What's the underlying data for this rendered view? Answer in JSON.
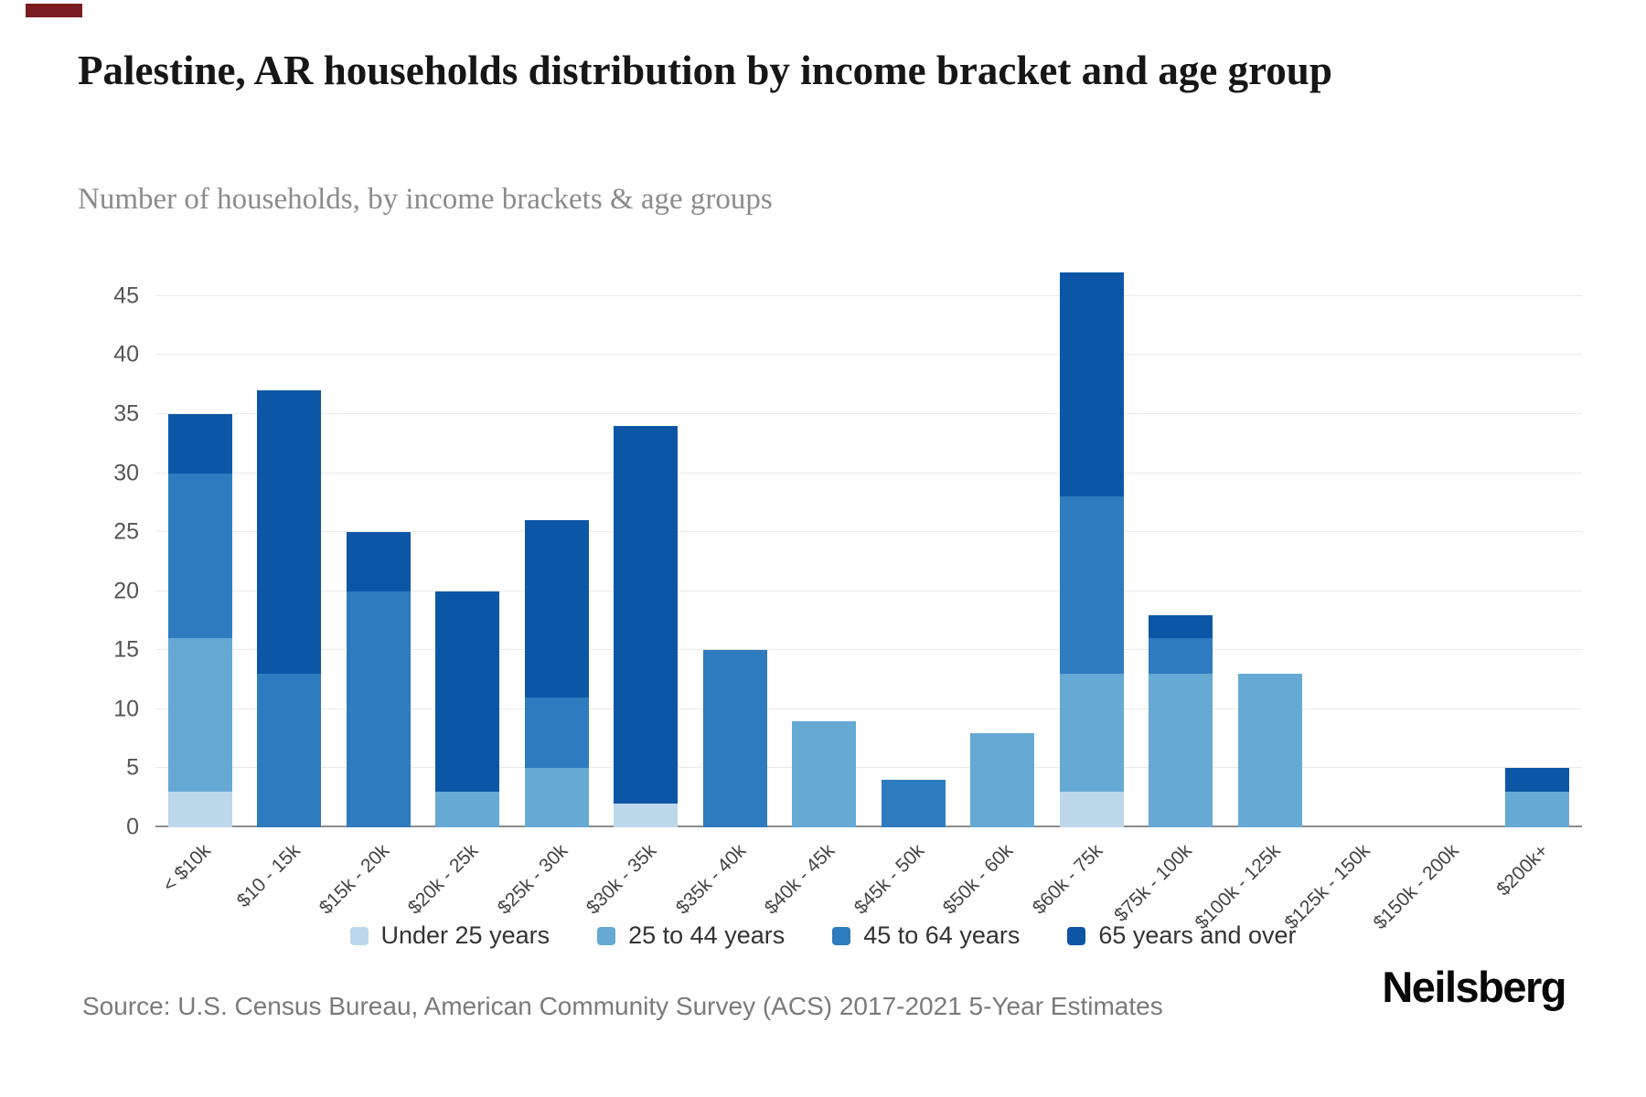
{
  "page": {
    "accent_color": "#7a1c20"
  },
  "header": {
    "title": "Palestine, AR households distribution by income bracket and age group",
    "subtitle": "Number of households, by income brackets & age groups"
  },
  "chart_data": {
    "type": "bar",
    "stacked": true,
    "title": "Palestine, AR households distribution by income bracket and age group",
    "subtitle": "Number of households, by income brackets & age groups",
    "xlabel": "",
    "ylabel": "Number of households",
    "grid": "horizontal",
    "legend_position": "bottom",
    "ylim": [
      0,
      48
    ],
    "yticks": [
      0,
      5,
      10,
      15,
      20,
      25,
      30,
      35,
      40,
      45
    ],
    "categories": [
      "< $10k",
      "$10 - 15k",
      "$15k - 20k",
      "$20k - 25k",
      "$25k - 30k",
      "$30k - 35k",
      "$35k - 40k",
      "$40k - 45k",
      "$45k - 50k",
      "$50k - 60k",
      "$60k - 75k",
      "$75k - 100k",
      "$100k - 125k",
      "$125k - 150k",
      "$150k - 200k",
      "$200k+"
    ],
    "series": [
      {
        "name": "Under 25 years",
        "color": "#bdd7eb",
        "values": [
          3,
          0,
          0,
          0,
          0,
          2,
          0,
          0,
          0,
          0,
          3,
          0,
          0,
          0,
          0,
          0
        ]
      },
      {
        "name": "25 to 44 years",
        "color": "#66a9d4",
        "values": [
          13,
          0,
          0,
          3,
          5,
          0,
          0,
          9,
          0,
          8,
          10,
          13,
          13,
          0,
          0,
          3
        ]
      },
      {
        "name": "45 to 64 years",
        "color": "#2f7bbf",
        "values": [
          14,
          13,
          20,
          0,
          6,
          0,
          15,
          0,
          4,
          0,
          15,
          3,
          0,
          0,
          0,
          0
        ]
      },
      {
        "name": "65 years and over",
        "color": "#0d56a6",
        "values": [
          5,
          24,
          5,
          17,
          15,
          32,
          0,
          0,
          0,
          0,
          19,
          2,
          0,
          0,
          0,
          2
        ]
      }
    ],
    "totals": [
      35,
      37,
      25,
      20,
      26,
      34,
      15,
      9,
      4,
      8,
      47,
      18,
      13,
      0,
      0,
      5
    ]
  },
  "footer": {
    "source": "Source: U.S. Census Bureau, American Community Survey (ACS) 2017-2021 5-Year Estimates",
    "brand": "Neilsberg"
  }
}
